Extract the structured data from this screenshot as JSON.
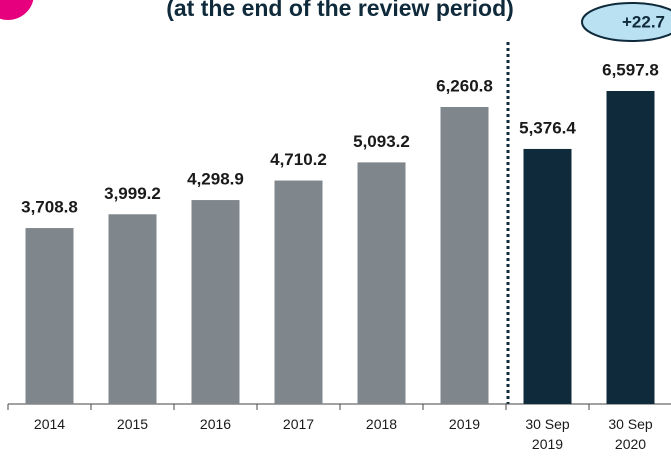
{
  "title": "(at the end of the review period)",
  "badge": "+22.7",
  "chart_data": {
    "type": "bar",
    "categories": [
      "2014",
      "2015",
      "2016",
      "2017",
      "2018",
      "2019",
      "30 Sep 2019",
      "30 Sep 2020"
    ],
    "values": [
      3708.8,
      3999.2,
      4298.9,
      4710.2,
      5093.2,
      6260.8,
      5376.4,
      6597.8
    ],
    "value_labels": [
      "3,708.8",
      "3,999.2",
      "4,298.9",
      "4,710.2",
      "5,093.2",
      "6,260.8",
      "5,376.4",
      "6,597.8"
    ],
    "colors": [
      "#7f878c",
      "#7f878c",
      "#7f878c",
      "#7f878c",
      "#7f878c",
      "#7f878c",
      "#0f2a3a",
      "#0f2a3a"
    ]
  }
}
